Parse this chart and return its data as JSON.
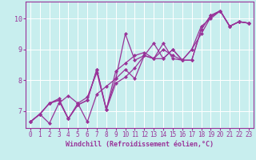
{
  "xlabel": "Windchill (Refroidissement éolien,°C)",
  "bg_color": "#c8eeee",
  "grid_color": "#aadddd",
  "line_color": "#993399",
  "spine_color": "#993399",
  "xlim": [
    -0.5,
    23.5
  ],
  "ylim": [
    6.45,
    10.55
  ],
  "xticks": [
    0,
    1,
    2,
    3,
    4,
    5,
    6,
    7,
    8,
    9,
    10,
    11,
    12,
    13,
    14,
    15,
    16,
    17,
    18,
    19,
    20,
    21,
    22,
    23
  ],
  "yticks": [
    7,
    8,
    9,
    10
  ],
  "series": [
    [
      6.65,
      6.9,
      6.6,
      7.25,
      7.5,
      7.25,
      6.65,
      7.55,
      7.8,
      8.05,
      9.5,
      8.65,
      8.8,
      9.2,
      8.7,
      9.0,
      8.65,
      8.65,
      9.65,
      10.1,
      10.25,
      9.75,
      9.9,
      9.85
    ],
    [
      6.65,
      6.9,
      7.25,
      7.35,
      6.75,
      7.2,
      7.35,
      8.35,
      7.05,
      8.05,
      8.35,
      8.05,
      8.8,
      8.7,
      8.7,
      9.0,
      8.65,
      9.0,
      9.75,
      10.0,
      10.25,
      9.75,
      9.9,
      9.85
    ],
    [
      6.65,
      6.9,
      7.25,
      7.35,
      6.75,
      7.2,
      7.35,
      8.35,
      7.05,
      8.3,
      8.55,
      8.8,
      8.9,
      8.7,
      9.2,
      8.7,
      8.65,
      8.65,
      9.65,
      10.1,
      10.25,
      9.75,
      9.9,
      9.85
    ],
    [
      6.65,
      6.9,
      7.25,
      7.4,
      6.75,
      7.25,
      7.45,
      8.25,
      7.05,
      7.9,
      8.1,
      8.4,
      8.8,
      8.7,
      9.0,
      8.8,
      8.65,
      9.0,
      9.5,
      10.05,
      10.25,
      9.75,
      9.9,
      9.85
    ]
  ],
  "tick_label_color": "#993399",
  "xlabel_color": "#993399",
  "tick_fontsize": 5.5,
  "xlabel_fontsize": 6.0,
  "marker": "D",
  "markersize": 2.0,
  "linewidth": 0.9
}
